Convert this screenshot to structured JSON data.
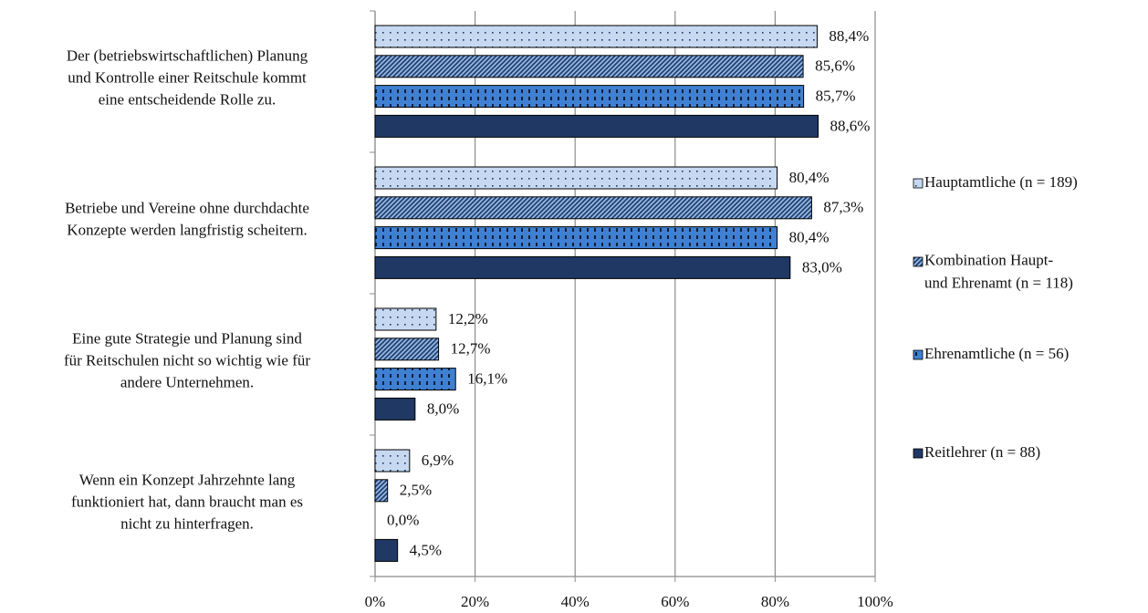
{
  "chart_data": {
    "type": "bar",
    "orientation": "horizontal",
    "categories": [
      "Der (betriebswirtschaftlichen) Planung\nund Kontrolle einer Reitschule kommt\neine entscheidende Rolle zu.",
      "Betriebe und Vereine ohne durchdachte\nKonzepte werden langfristig scheitern.",
      "Eine gute Strategie und Planung sind\nfür Reitschulen nicht so wichtig wie für\nandere Unternehmen.",
      "Wenn ein Konzept Jahrzehnte lang\nfunktioniert hat, dann braucht man es\nnicht zu hinterfragen."
    ],
    "series": [
      {
        "name": "Hauptamtliche (n = 189)",
        "color": "#c6d9f1",
        "pattern": "dots",
        "values": [
          88.4,
          80.4,
          12.2,
          6.9
        ],
        "value_labels": [
          "88,4%",
          "80,4%",
          "12,2%",
          "6,9%"
        ]
      },
      {
        "name": "Kombination Haupt-\nund Ehrenamt (n = 118)",
        "color": "#8eb4e3",
        "pattern": "diagonal",
        "values": [
          85.6,
          87.3,
          12.7,
          2.5
        ],
        "value_labels": [
          "85,6%",
          "87,3%",
          "12,7%",
          "2,5%"
        ]
      },
      {
        "name": "Ehrenamtliche (n = 56)",
        "color": "#3f80d2",
        "pattern": "vertical",
        "values": [
          85.7,
          80.4,
          16.1,
          0.0
        ],
        "value_labels": [
          "85,7%",
          "80,4%",
          "16,1%",
          "0,0%"
        ]
      },
      {
        "name": "Reitlehrer (n = 88)",
        "color": "#1f3864",
        "pattern": "solid",
        "values": [
          88.6,
          83.0,
          8.0,
          4.5
        ],
        "value_labels": [
          "88,6%",
          "83,0%",
          "8,0%",
          "4,5%"
        ]
      }
    ],
    "xlim": [
      0,
      100
    ],
    "xticks": [
      {
        "value": 0,
        "label": "0%"
      },
      {
        "value": 20,
        "label": "20%"
      },
      {
        "value": 40,
        "label": "40%"
      },
      {
        "value": 60,
        "label": "60%"
      },
      {
        "value": 80,
        "label": "80%"
      },
      {
        "value": 100,
        "label": "100%"
      }
    ],
    "grid": true,
    "legend": "right"
  }
}
